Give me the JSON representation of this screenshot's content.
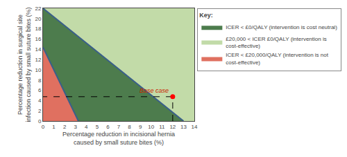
{
  "chart_data": {
    "type": "area",
    "xlabel": "Percentage reduction in incisional hernia\ncaused by small suture bites (%)",
    "ylabel": "Percentage reduction in surgical site\ninfection caused by small suture bites (%)",
    "xlim": [
      0,
      14
    ],
    "ylim": [
      0,
      22
    ],
    "xticks": [
      0,
      1,
      2,
      3,
      4,
      5,
      6,
      7,
      8,
      9,
      10,
      11,
      12,
      13,
      14
    ],
    "yticks": [
      0,
      2,
      4,
      6,
      8,
      10,
      12,
      14,
      16,
      18,
      20,
      22
    ],
    "grid": true,
    "legend": "right",
    "legend_title": "Key:",
    "series": [
      {
        "name": "ICER < £0/QALY (intervention is cost neutral)",
        "type": "area",
        "color": "#4d7c4d",
        "x": [
          0,
          3.27,
          13.0,
          0
        ],
        "values": [
          14.4,
          0,
          0,
          22
        ]
      },
      {
        "name": "£20,000 < ICER £0/QALY (intervention is\ncost-effective)",
        "type": "background",
        "color": "#c2dba8"
      },
      {
        "name": "ICER < £20,000/QALY (intervention is not\ncost-effective)",
        "type": "area",
        "color": "#e07060",
        "x": [
          0,
          0,
          3.27
        ],
        "values": [
          0,
          14.4,
          0
        ]
      },
      {
        "type": "line",
        "color": "#3a5f8a",
        "x": [
          0,
          3.27
        ],
        "values": [
          14.4,
          0
        ]
      },
      {
        "type": "line",
        "color": "#3a5f8a",
        "x": [
          0,
          13.0
        ],
        "values": [
          22,
          0
        ]
      },
      {
        "type": "line",
        "color": "#000000",
        "line_style": "dashed",
        "x": [
          12,
          12,
          0
        ],
        "values": [
          0,
          4.75,
          4.75
        ]
      },
      {
        "type": "scatter",
        "color": "red",
        "marker": "circle",
        "x": [
          12
        ],
        "values": [
          4.75
        ]
      }
    ],
    "annotations": [
      {
        "text": "Base case",
        "x": 12,
        "y": 4.75,
        "color": "#cc2200"
      }
    ]
  }
}
